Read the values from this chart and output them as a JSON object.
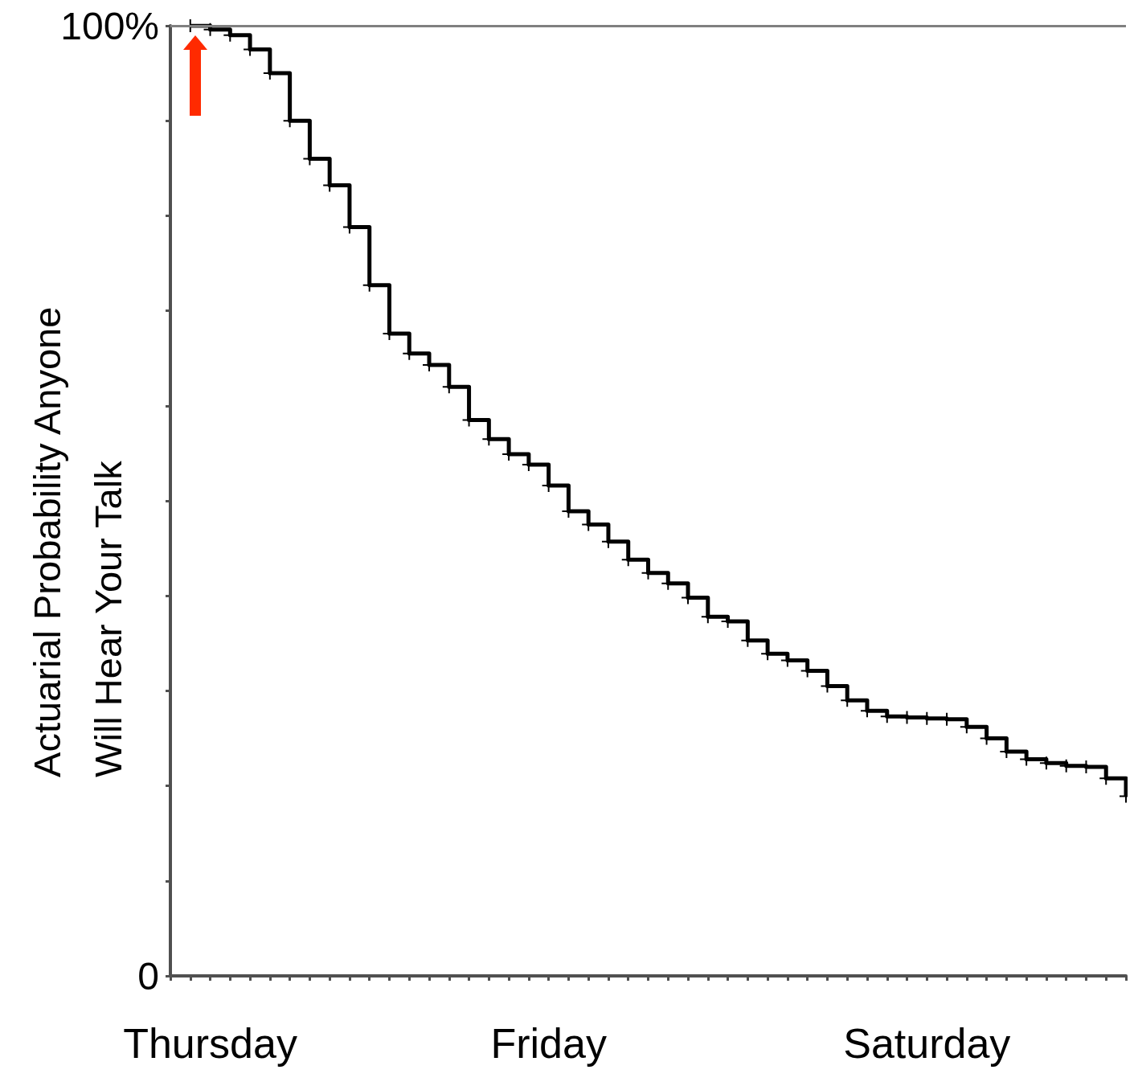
{
  "chart_data": {
    "type": "step",
    "ylabel": "Actuarial Probability Anyone\nWill Hear Your Talk",
    "categories": [
      null,
      null,
      "Thursday",
      null,
      null,
      null,
      null,
      null,
      null,
      null,
      null,
      null,
      null,
      null,
      null,
      null,
      null,
      null,
      null,
      "Friday",
      null,
      null,
      null,
      null,
      null,
      null,
      null,
      null,
      null,
      null,
      null,
      null,
      null,
      null,
      null,
      null,
      null,
      null,
      "Saturday",
      null,
      null,
      null,
      null,
      null,
      null,
      null,
      null,
      null,
      null
    ],
    "ylim": [
      0,
      100
    ],
    "yticks": [
      {
        "value": 0,
        "label": "0"
      },
      {
        "value": 10,
        "label": null
      },
      {
        "value": 20,
        "label": null
      },
      {
        "value": 30,
        "label": null
      },
      {
        "value": 40,
        "label": null
      },
      {
        "value": 50,
        "label": null
      },
      {
        "value": 60,
        "label": null
      },
      {
        "value": 70,
        "label": null
      },
      {
        "value": 80,
        "label": null
      },
      {
        "value": 90,
        "label": null
      },
      {
        "value": 100,
        "label": "100%"
      }
    ],
    "series": [
      {
        "color": "#000000",
        "values": [
          null,
          100,
          99.6,
          99,
          97.5,
          95,
          90,
          86,
          83.2,
          78.8,
          72.7,
          67.6,
          65.5,
          64.3,
          62,
          58.5,
          56.5,
          54.9,
          53.8,
          51.6,
          48.9,
          47.5,
          45.7,
          43.8,
          42.4,
          41.3,
          39.8,
          37.8,
          37.3,
          35.3,
          33.9,
          33.2,
          32.1,
          30.5,
          29,
          27.9,
          27.3,
          27.2,
          27.1,
          27,
          26.2,
          25,
          23.6,
          22.8,
          22.4,
          22.1,
          22,
          20.8,
          18.9
        ]
      }
    ],
    "ref_lines": [
      {
        "axis": "y",
        "value": 100,
        "label": null,
        "color": "#808080"
      }
    ],
    "marker": "cross",
    "line_style": "solid",
    "grid": false
  }
}
